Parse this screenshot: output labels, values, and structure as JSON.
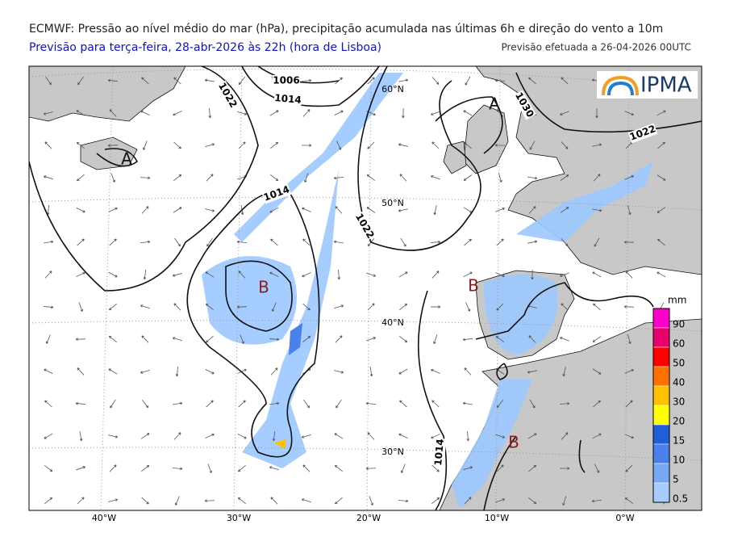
{
  "header": {
    "title": "ECMWF: Pressão ao nível médio do mar (hPa), precipitação acumulada nas últimas 6h e direção do vento a 10m",
    "subtitle": "Previsão para terça-feira, 28-abr-2026 às 22h (hora de Lisboa)",
    "issued": "Previsão efetuada a 26-04-2026 00UTC"
  },
  "logo": "IPMA",
  "map": {
    "isobar_labels": [
      "1006",
      "1014",
      "1022",
      "1014",
      "1022",
      "1030",
      "1022",
      "1014"
    ],
    "pressure_centers": [
      "A",
      "A",
      "B",
      "B",
      "B"
    ],
    "latitude_labels": [
      "60°N",
      "50°N",
      "40°N",
      "30°N"
    ],
    "longitude_labels": [
      "40°W",
      "30°W",
      "20°W",
      "10°W",
      "0°W"
    ]
  },
  "colorbar": {
    "unit": "mm",
    "levels": [
      {
        "label": "90",
        "color": "#ff00cc"
      },
      {
        "label": "60",
        "color": "#e8006e"
      },
      {
        "label": "50",
        "color": "#ff0000"
      },
      {
        "label": "40",
        "color": "#ff7000"
      },
      {
        "label": "30",
        "color": "#ffc000"
      },
      {
        "label": "20",
        "color": "#ffff00"
      },
      {
        "label": "15",
        "color": "#1e5fd8"
      },
      {
        "label": "10",
        "color": "#4a80ec"
      },
      {
        "label": "5",
        "color": "#78a8f4"
      },
      {
        "label": "0.5",
        "color": "#a8ccff"
      }
    ]
  }
}
